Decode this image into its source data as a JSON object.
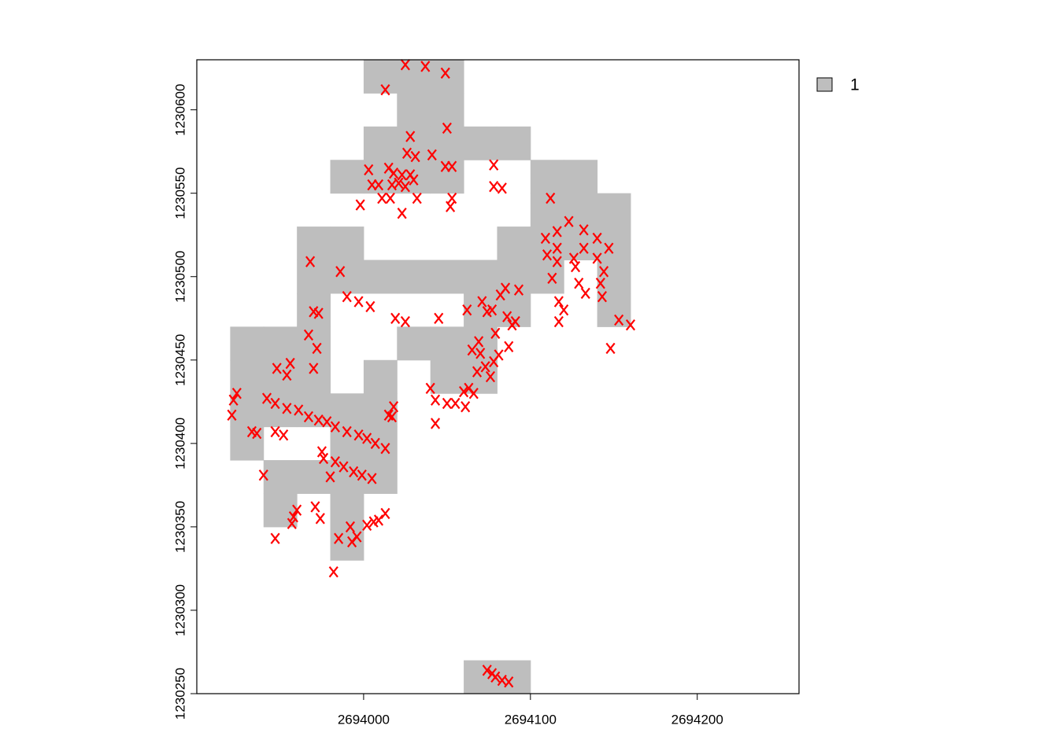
{
  "chart_data": {
    "type": "raster-scatter",
    "xlim": [
      2693900,
      2694261
    ],
    "ylim": [
      1230250,
      1230630
    ],
    "xticks": [
      2694000,
      2694100,
      2694200
    ],
    "yticks": [
      1230250,
      1230300,
      1230350,
      1230400,
      1230450,
      1230500,
      1230550,
      1230600
    ],
    "raster": {
      "name": "1",
      "color": "#bebebe",
      "cell_size": 20,
      "x": [
        2694000,
        2694020,
        2694040,
        2694020,
        2694040,
        2694000,
        2694020,
        2694040,
        2694060,
        2694080,
        2693980,
        2694000,
        2694020,
        2694040,
        2694100,
        2694120,
        2694100,
        2694120,
        2694140,
        2693960,
        2693980,
        2694080,
        2694100,
        2694120,
        2694140,
        2693960,
        2693980,
        2694000,
        2694020,
        2694040,
        2694060,
        2694080,
        2694100,
        2694140,
        2693960,
        2694060,
        2694080,
        2694140,
        2693920,
        2693940,
        2693960,
        2694020,
        2694040,
        2694060,
        2693920,
        2693940,
        2693960,
        2694000,
        2694040,
        2694060,
        2693920,
        2693940,
        2693960,
        2693980,
        2694000,
        2693920,
        2693980,
        2694000,
        2693940,
        2693960,
        2693980,
        2694000,
        2693940,
        2693980,
        2693980,
        2694060,
        2694080
      ],
      "y": [
        1230610,
        1230610,
        1230610,
        1230590,
        1230590,
        1230570,
        1230570,
        1230570,
        1230570,
        1230570,
        1230550,
        1230550,
        1230550,
        1230550,
        1230550,
        1230550,
        1230530,
        1230530,
        1230530,
        1230510,
        1230510,
        1230510,
        1230510,
        1230510,
        1230510,
        1230490,
        1230490,
        1230490,
        1230490,
        1230490,
        1230490,
        1230490,
        1230490,
        1230490,
        1230470,
        1230470,
        1230470,
        1230470,
        1230450,
        1230450,
        1230450,
        1230450,
        1230450,
        1230450,
        1230430,
        1230430,
        1230430,
        1230430,
        1230430,
        1230430,
        1230410,
        1230410,
        1230410,
        1230410,
        1230410,
        1230390,
        1230390,
        1230390,
        1230370,
        1230370,
        1230370,
        1230370,
        1230350,
        1230350,
        1230330,
        1230250,
        1230250
      ]
    },
    "points": {
      "color": "red",
      "x": [
        2694025,
        2694037,
        2694049,
        2694013,
        2694050,
        2694028,
        2694026,
        2694031,
        2694041,
        2694049,
        2694053,
        2694078,
        2694003,
        2694015,
        2694018,
        2694023,
        2694028,
        2694005,
        2694009,
        2694017,
        2694021,
        2694025,
        2694030,
        2694078,
        2694083,
        2694011,
        2694016,
        2694032,
        2694053,
        2694052,
        2693998,
        2694023,
        2694112,
        2694123,
        2694116,
        2694132,
        2694109,
        2694140,
        2694147,
        2694116,
        2694132,
        2694110,
        2694126,
        2694140,
        2694116,
        2694127,
        2694144,
        2694113,
        2694129,
        2694142,
        2694133,
        2694143,
        2694117,
        2694120,
        2694117,
        2694153,
        2694160,
        2694148,
        2693968,
        2693986,
        2694085,
        2694093,
        2694082,
        2694071,
        2693990,
        2693997,
        2694004,
        2693970,
        2693973,
        2694062,
        2694074,
        2694077,
        2694019,
        2694025,
        2694045,
        2694086,
        2694091,
        2694089,
        2693967,
        2693972,
        2694079,
        2694069,
        2694065,
        2694087,
        2694081,
        2694078,
        2694070,
        2694073,
        2694068,
        2693956,
        2693948,
        2693954,
        2693970,
        2694076,
        2693924,
        2693922,
        2693921,
        2693942,
        2693947,
        2693954,
        2693961,
        2693967,
        2693973,
        2693978,
        2693983,
        2693990,
        2693997,
        2694002,
        2694007,
        2694013,
        2693933,
        2693936,
        2693947,
        2693952,
        2693975,
        2693976,
        2693983,
        2693988,
        2693994,
        2693999,
        2694005,
        2693980,
        2693940,
        2694040,
        2694043,
        2694050,
        2694055,
        2694061,
        2694060,
        2694063,
        2694066,
        2694043,
        2694018,
        2694015,
        2694017,
        2693960,
        2693958,
        2693957,
        2693971,
        2693974,
        2693947,
        2693992,
        2694002,
        2694013,
        2694009,
        2694006,
        2693985,
        2693993,
        2693996,
        2693982,
        2694074,
        2694077,
        2694079,
        2694083,
        2694087
      ],
      "y": [
        1230627,
        1230626,
        1230622,
        1230612,
        1230589,
        1230584,
        1230574,
        1230572,
        1230573,
        1230566,
        1230566,
        1230567,
        1230564,
        1230565,
        1230562,
        1230561,
        1230561,
        1230555,
        1230555,
        1230555,
        1230556,
        1230554,
        1230558,
        1230554,
        1230553,
        1230547,
        1230547,
        1230547,
        1230547,
        1230542,
        1230543,
        1230538,
        1230547,
        1230533,
        1230527,
        1230528,
        1230523,
        1230523,
        1230517,
        1230517,
        1230517,
        1230513,
        1230511,
        1230511,
        1230509,
        1230506,
        1230503,
        1230499,
        1230496,
        1230496,
        1230490,
        1230488,
        1230485,
        1230480,
        1230473,
        1230474,
        1230471,
        1230457,
        1230509,
        1230503,
        1230493,
        1230492,
        1230489,
        1230485,
        1230488,
        1230485,
        1230482,
        1230479,
        1230478,
        1230480,
        1230479,
        1230480,
        1230475,
        1230473,
        1230475,
        1230476,
        1230473,
        1230471,
        1230465,
        1230457,
        1230466,
        1230461,
        1230456,
        1230458,
        1230453,
        1230449,
        1230454,
        1230446,
        1230443,
        1230448,
        1230445,
        1230441,
        1230445,
        1230440,
        1230430,
        1230426,
        1230417,
        1230427,
        1230424,
        1230421,
        1230420,
        1230416,
        1230414,
        1230413,
        1230410,
        1230407,
        1230405,
        1230403,
        1230400,
        1230397,
        1230407,
        1230406,
        1230407,
        1230405,
        1230395,
        1230391,
        1230389,
        1230386,
        1230383,
        1230381,
        1230379,
        1230380,
        1230381,
        1230433,
        1230426,
        1230424,
        1230424,
        1230422,
        1230431,
        1230433,
        1230430,
        1230412,
        1230422,
        1230417,
        1230416,
        1230360,
        1230356,
        1230352,
        1230362,
        1230355,
        1230343,
        1230350,
        1230351,
        1230358,
        1230354,
        1230353,
        1230343,
        1230341,
        1230344,
        1230323,
        1230264,
        1230262,
        1230260,
        1230258,
        1230257
      ]
    }
  }
}
